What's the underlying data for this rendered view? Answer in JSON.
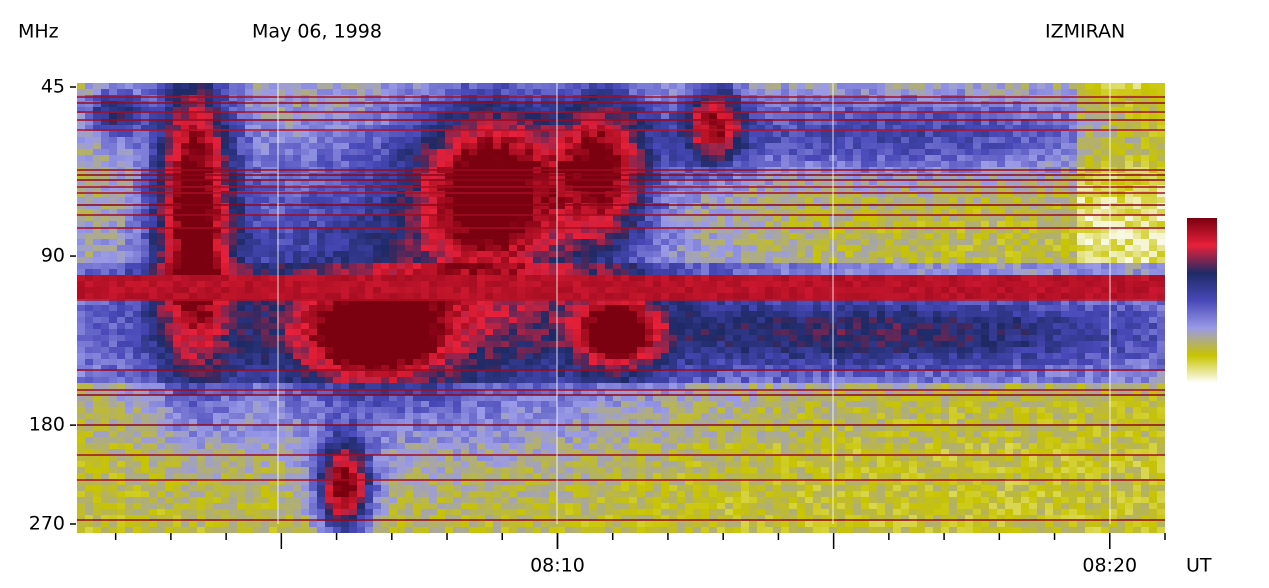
{
  "chart_data": {
    "type": "spectrogram",
    "title": "May 06, 1998",
    "subtitle": "IZMIRAN",
    "y_label": "MHz",
    "x_label": "UT",
    "y_log": true,
    "ylim": [
      45,
      270
    ],
    "yticks": [
      45,
      90,
      180,
      270
    ],
    "xlim": [
      481.3,
      501
    ],
    "xticks": [
      {
        "value": 490,
        "label": "08:10"
      },
      {
        "value": 500,
        "label": "08:20"
      }
    ],
    "colorscale": [
      "#ffffff",
      "#c8c400",
      "#9a9ae8",
      "#4848b8",
      "#1e2a66",
      "#e8203a",
      "#7a0010"
    ]
  }
}
